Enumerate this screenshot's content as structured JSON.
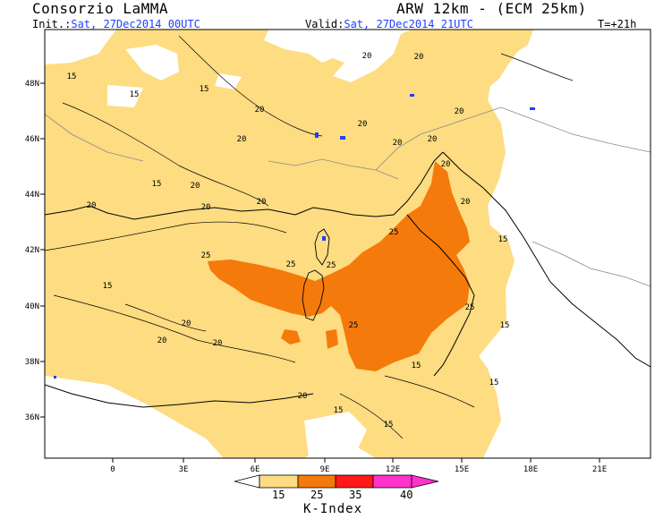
{
  "header": {
    "org": "Consorzio LaMMA",
    "model": "ARW 12km - (ECM 25km)",
    "init_label": "Init.:",
    "init_value": "Sat, 27Dec2014 00UTC",
    "valid_label": "Valid:",
    "valid_value": "Sat, 27Dec2014 21UTC",
    "lead": "T=+21h"
  },
  "axes": {
    "lon_labels": [
      "0",
      "3E",
      "6E",
      "9E",
      "12E",
      "15E",
      "18E",
      "21E"
    ],
    "lat_labels": [
      "48N",
      "46N",
      "44N",
      "42N",
      "40N",
      "38N",
      "36N"
    ]
  },
  "contour_labels": [
    "15",
    "15",
    "15",
    "15",
    "20",
    "20",
    "20",
    "20",
    "20",
    "20",
    "20",
    "20",
    "20",
    "20",
    "20",
    "20",
    "20",
    "20",
    "25",
    "25",
    "25",
    "25",
    "25",
    "25",
    "15",
    "15",
    "15",
    "15",
    "20",
    "20",
    "20",
    "20",
    "15",
    "15",
    "15"
  ],
  "colorbar": {
    "title": "K-Index",
    "ticks": [
      "15",
      "25",
      "35",
      "40"
    ],
    "colors": [
      "#fddc82",
      "#f47a0b",
      "#ff1a1a",
      "#ff33cc"
    ],
    "undercolor": "#ffffff"
  },
  "legend_colors": {
    "level_15": "#fddc82",
    "level_25": "#f47a0b",
    "land_line": "#000000",
    "border_line": "#8a8a8a",
    "lakes": "#1f3fff"
  }
}
